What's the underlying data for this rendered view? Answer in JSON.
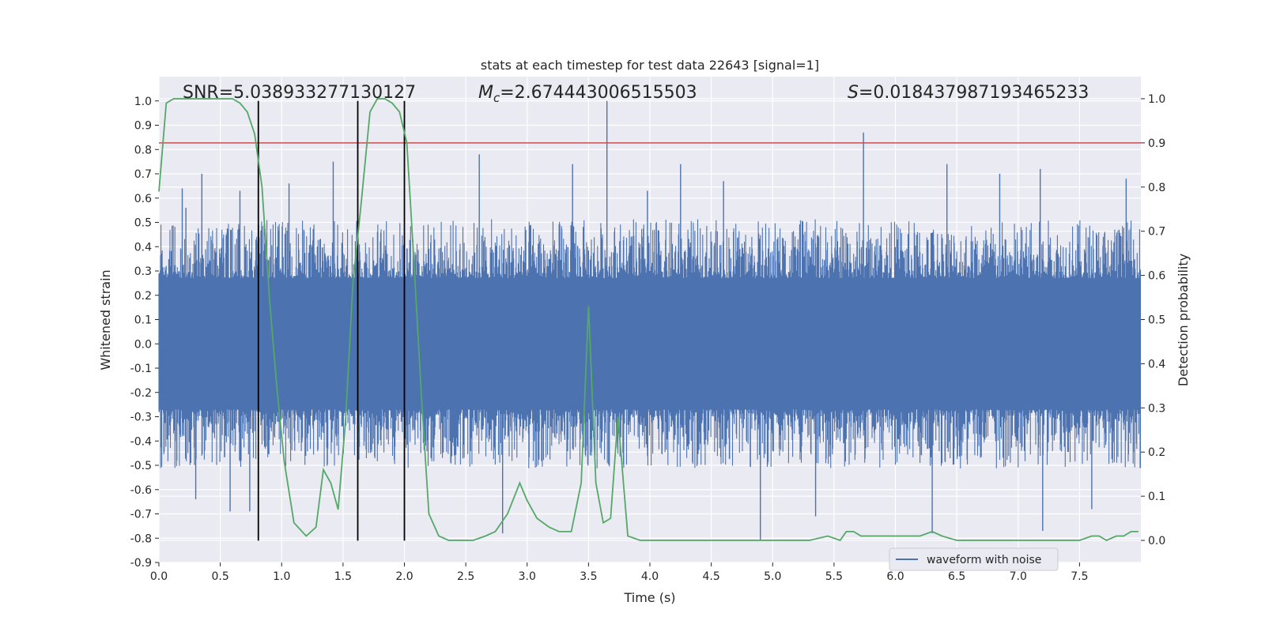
{
  "chart_data": {
    "type": "line",
    "title": "stats at each timestep for test data 22643 [signal=1]",
    "xlabel": "Time (s)",
    "ylabel_left": "Whitened strain",
    "ylabel_right": "Detection probability",
    "xlim": [
      0.0,
      8.0
    ],
    "ylim_left": [
      -0.9,
      1.1
    ],
    "ylim_right": [
      -0.05,
      1.05
    ],
    "x_ticks": [
      "0.0",
      "0.5",
      "1.0",
      "1.5",
      "2.0",
      "2.5",
      "3.0",
      "3.5",
      "4.0",
      "4.5",
      "5.0",
      "5.5",
      "6.0",
      "6.5",
      "7.0",
      "7.5"
    ],
    "y_ticks_left": [
      "1.0",
      "0.9",
      "0.8",
      "0.7",
      "0.6",
      "0.5",
      "0.4",
      "0.3",
      "0.2",
      "0.1",
      "0.0",
      "-0.1",
      "-0.2",
      "-0.3",
      "-0.4",
      "-0.5",
      "-0.6",
      "-0.7",
      "-0.8",
      "-0.9"
    ],
    "y_ticks_right": [
      "1.0",
      "0.9",
      "0.8",
      "0.7",
      "0.6",
      "0.5",
      "0.4",
      "0.3",
      "0.2",
      "0.1",
      "0.0"
    ],
    "grid": true,
    "legend_placement": "lower-right",
    "annotations": {
      "snr": "SNR=5.038933277130127",
      "mc_symbol": "M",
      "mc_sub": "c",
      "mc_value": "=2.674443006515503",
      "s_symbol": "S",
      "s_value": "=0.018437987193465233"
    },
    "threshold": {
      "value": 0.9,
      "axis": "right",
      "color": "#c44e52"
    },
    "vertical_markers": [
      0.81,
      1.62,
      2.0
    ],
    "vertical_marker_color": "#000000",
    "vertical_marker_range_left": [
      -0.81,
      1.0
    ],
    "series": [
      {
        "name": "waveform with noise",
        "axis": "left",
        "color": "#4c72b0",
        "kind": "noise",
        "core_band": [
          -0.27,
          0.27
        ],
        "typical_peak": 0.45,
        "prominent_spikes": [
          {
            "x": 0.22,
            "y": 0.56
          },
          {
            "x": 0.3,
            "y": -0.64
          },
          {
            "x": 0.19,
            "y": 0.64
          },
          {
            "x": 0.35,
            "y": 0.7
          },
          {
            "x": 0.58,
            "y": -0.69
          },
          {
            "x": 0.66,
            "y": 0.63
          },
          {
            "x": 0.74,
            "y": -0.69
          },
          {
            "x": 1.06,
            "y": 0.66
          },
          {
            "x": 1.42,
            "y": 0.75
          },
          {
            "x": 2.61,
            "y": 0.78
          },
          {
            "x": 2.8,
            "y": -0.78
          },
          {
            "x": 3.37,
            "y": 0.74
          },
          {
            "x": 3.65,
            "y": 1.0
          },
          {
            "x": 3.98,
            "y": 0.63
          },
          {
            "x": 4.25,
            "y": 0.74
          },
          {
            "x": 4.6,
            "y": 0.67
          },
          {
            "x": 4.9,
            "y": -0.81
          },
          {
            "x": 5.35,
            "y": -0.71
          },
          {
            "x": 5.74,
            "y": 0.87
          },
          {
            "x": 6.3,
            "y": -0.78
          },
          {
            "x": 6.42,
            "y": 0.74
          },
          {
            "x": 6.85,
            "y": 0.7
          },
          {
            "x": 7.18,
            "y": 0.72
          },
          {
            "x": 7.2,
            "y": -0.77
          },
          {
            "x": 7.6,
            "y": -0.68
          },
          {
            "x": 7.88,
            "y": 0.68
          }
        ]
      },
      {
        "name": "",
        "axis": "right",
        "color": "#55a868",
        "kind": "line",
        "x": [
          0.0,
          0.06,
          0.12,
          0.2,
          0.3,
          0.4,
          0.5,
          0.6,
          0.66,
          0.72,
          0.78,
          0.84,
          0.9,
          0.96,
          1.02,
          1.1,
          1.2,
          1.28,
          1.34,
          1.4,
          1.46,
          1.52,
          1.58,
          1.65,
          1.72,
          1.78,
          1.84,
          1.9,
          1.96,
          2.02,
          2.08,
          2.14,
          2.2,
          2.28,
          2.36,
          2.46,
          2.56,
          2.66,
          2.74,
          2.84,
          2.94,
          3.0,
          3.08,
          3.18,
          3.26,
          3.36,
          3.44,
          3.5,
          3.56,
          3.62,
          3.68,
          3.74,
          3.82,
          3.92,
          4.0,
          4.3,
          4.7,
          5.0,
          5.3,
          5.45,
          5.55,
          5.6,
          5.66,
          5.72,
          5.8,
          6.0,
          6.2,
          6.3,
          6.38,
          6.5,
          6.8,
          7.1,
          7.4,
          7.5,
          7.6,
          7.66,
          7.72,
          7.8,
          7.86,
          7.92,
          7.98
        ],
        "y": [
          0.79,
          0.99,
          1.0,
          1.0,
          1.0,
          1.0,
          1.0,
          1.0,
          0.99,
          0.97,
          0.92,
          0.8,
          0.55,
          0.35,
          0.18,
          0.04,
          0.01,
          0.03,
          0.16,
          0.13,
          0.07,
          0.27,
          0.58,
          0.77,
          0.97,
          1.0,
          1.0,
          0.99,
          0.97,
          0.9,
          0.62,
          0.32,
          0.06,
          0.01,
          0.0,
          0.0,
          0.0,
          0.01,
          0.02,
          0.06,
          0.13,
          0.09,
          0.05,
          0.03,
          0.02,
          0.02,
          0.13,
          0.53,
          0.13,
          0.04,
          0.05,
          0.28,
          0.01,
          0.0,
          0.0,
          0.0,
          0.0,
          0.0,
          0.0,
          0.01,
          0.0,
          0.02,
          0.02,
          0.01,
          0.01,
          0.01,
          0.01,
          0.02,
          0.01,
          0.0,
          0.0,
          0.0,
          0.0,
          0.0,
          0.01,
          0.01,
          0.0,
          0.01,
          0.01,
          0.02,
          0.02
        ]
      }
    ]
  }
}
